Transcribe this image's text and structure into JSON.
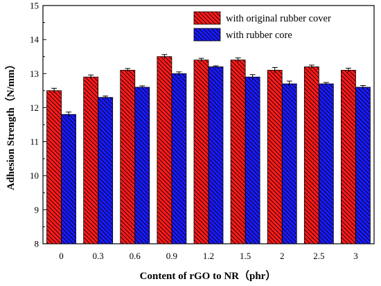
{
  "chart_data": {
    "type": "bar",
    "categories": [
      "0",
      "0.3",
      "0.6",
      "0.9",
      "1.2",
      "1.5",
      "2",
      "2.5",
      "3"
    ],
    "series": [
      {
        "name": "with original rubber cover",
        "color": "#ff1a1a",
        "hatch": "diagonal",
        "values": [
          12.5,
          12.9,
          13.1,
          13.5,
          13.4,
          13.4,
          13.1,
          13.2,
          13.1
        ],
        "errors": [
          0.07,
          0.06,
          0.05,
          0.06,
          0.05,
          0.06,
          0.08,
          0.05,
          0.06
        ]
      },
      {
        "name": "with rubber core",
        "color": "#1a1aff",
        "hatch": "diagonal",
        "values": [
          11.8,
          12.3,
          12.6,
          13.0,
          13.2,
          12.9,
          12.7,
          12.7,
          12.6
        ],
        "errors": [
          0.07,
          0.04,
          0.04,
          0.05,
          0.03,
          0.07,
          0.08,
          0.04,
          0.05
        ]
      }
    ],
    "xlabel": "Content of rGO to NR（phr）",
    "ylabel": "Adhesion Strength（N/mm）",
    "ylim": [
      8,
      15
    ],
    "yticks": [
      8,
      9,
      10,
      11,
      12,
      13,
      14,
      15
    ],
    "grid": false,
    "legend_position": "top-right"
  }
}
